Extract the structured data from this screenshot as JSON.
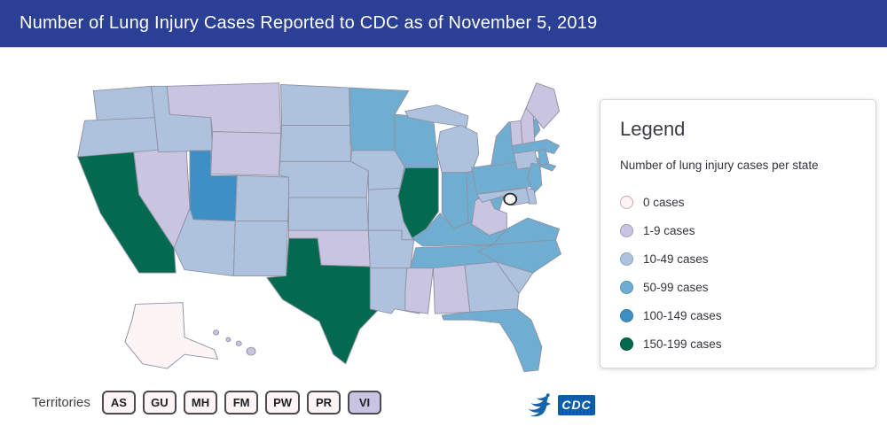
{
  "header": {
    "title": "Number of Lung Injury Cases Reported to CDC as of November 5, 2019"
  },
  "colors": {
    "header_bg": "#2b3f94",
    "state_border": "#9093a6",
    "dc_marker_stroke": "#2b2b2b",
    "categories": {
      "0": {
        "fill": "#fdf4f5",
        "stroke": "#d0a9ae"
      },
      "1-9": {
        "fill": "#c9c5e1",
        "stroke": "#9c98bd"
      },
      "10-49": {
        "fill": "#aec2de",
        "stroke": "#87a2c4"
      },
      "50-99": {
        "fill": "#6fadd1",
        "stroke": "#5590b6"
      },
      "100-149": {
        "fill": "#3e8fc3",
        "stroke": "#2f79a8"
      },
      "150-199": {
        "fill": "#03694f",
        "stroke": "#02503c"
      }
    }
  },
  "legend": {
    "title": "Legend",
    "subtitle": "Number of lung injury cases per state",
    "items": [
      {
        "label": "0 cases",
        "category": "0"
      },
      {
        "label": "1-9 cases",
        "category": "1-9"
      },
      {
        "label": "10-49 cases",
        "category": "10-49"
      },
      {
        "label": "50-99 cases",
        "category": "50-99"
      },
      {
        "label": "100-149 cases",
        "category": "100-149"
      },
      {
        "label": "150-199 cases",
        "category": "150-199"
      }
    ]
  },
  "map": {
    "states": [
      {
        "abbr": "AK",
        "category": "0"
      },
      {
        "abbr": "HI",
        "category": "1-9"
      },
      {
        "abbr": "WA",
        "category": "10-49"
      },
      {
        "abbr": "OR",
        "category": "10-49"
      },
      {
        "abbr": "CA",
        "category": "150-199"
      },
      {
        "abbr": "NV",
        "category": "1-9"
      },
      {
        "abbr": "ID",
        "category": "10-49"
      },
      {
        "abbr": "MT",
        "category": "1-9"
      },
      {
        "abbr": "WY",
        "category": "1-9"
      },
      {
        "abbr": "UT",
        "category": "100-149"
      },
      {
        "abbr": "CO",
        "category": "10-49"
      },
      {
        "abbr": "AZ",
        "category": "10-49"
      },
      {
        "abbr": "NM",
        "category": "10-49"
      },
      {
        "abbr": "ND",
        "category": "10-49"
      },
      {
        "abbr": "SD",
        "category": "10-49"
      },
      {
        "abbr": "NE",
        "category": "10-49"
      },
      {
        "abbr": "KS",
        "category": "10-49"
      },
      {
        "abbr": "OK",
        "category": "1-9"
      },
      {
        "abbr": "TX",
        "category": "150-199"
      },
      {
        "abbr": "MN",
        "category": "50-99"
      },
      {
        "abbr": "IA",
        "category": "10-49"
      },
      {
        "abbr": "MO",
        "category": "10-49"
      },
      {
        "abbr": "AR",
        "category": "10-49"
      },
      {
        "abbr": "LA",
        "category": "10-49"
      },
      {
        "abbr": "WI",
        "category": "50-99"
      },
      {
        "abbr": "IL",
        "category": "150-199"
      },
      {
        "abbr": "MI",
        "category": "10-49"
      },
      {
        "abbr": "IN",
        "category": "50-99"
      },
      {
        "abbr": "OH",
        "category": "50-99"
      },
      {
        "abbr": "KY",
        "category": "50-99"
      },
      {
        "abbr": "TN",
        "category": "50-99"
      },
      {
        "abbr": "MS",
        "category": "1-9"
      },
      {
        "abbr": "AL",
        "category": "1-9"
      },
      {
        "abbr": "GA",
        "category": "10-49"
      },
      {
        "abbr": "SC",
        "category": "10-49"
      },
      {
        "abbr": "NC",
        "category": "50-99"
      },
      {
        "abbr": "FL",
        "category": "50-99"
      },
      {
        "abbr": "VA",
        "category": "50-99"
      },
      {
        "abbr": "WV",
        "category": "1-9"
      },
      {
        "abbr": "PA",
        "category": "50-99"
      },
      {
        "abbr": "NY",
        "category": "50-99"
      },
      {
        "abbr": "VT",
        "category": "1-9"
      },
      {
        "abbr": "NH",
        "category": "1-9"
      },
      {
        "abbr": "ME",
        "category": "1-9"
      },
      {
        "abbr": "MA",
        "category": "50-99"
      },
      {
        "abbr": "CT",
        "category": "10-49"
      },
      {
        "abbr": "RI",
        "category": "50-99"
      },
      {
        "abbr": "NJ",
        "category": "50-99"
      },
      {
        "abbr": "DE",
        "category": "10-49"
      },
      {
        "abbr": "MD",
        "category": "10-49"
      }
    ],
    "dc_marker": {
      "present": true
    }
  },
  "territories": {
    "label": "Territories",
    "buttons": [
      {
        "label": "AS",
        "category": "0"
      },
      {
        "label": "GU",
        "category": "0"
      },
      {
        "label": "MH",
        "category": "0"
      },
      {
        "label": "FM",
        "category": "0"
      },
      {
        "label": "PW",
        "category": "0"
      },
      {
        "label": "PR",
        "category": "0"
      },
      {
        "label": "VI",
        "category": "1-9"
      }
    ]
  },
  "footer": {
    "cdc_text": "CDC"
  }
}
